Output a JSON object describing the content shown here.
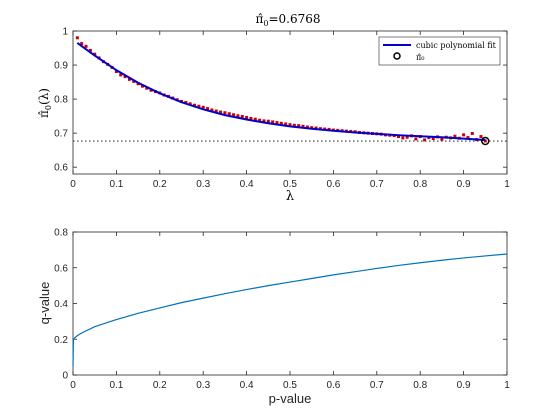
{
  "chart_data": [
    {
      "type": "scatter",
      "title_base": "π̂",
      "title_sub": "0",
      "title_value": "=0.6768",
      "xlabel": "λ",
      "ylabel_base": "π̂",
      "ylabel_sub": "0",
      "ylabel_arg": "(λ)",
      "xlim": [
        0,
        1
      ],
      "ylim": [
        0.58,
        1.0
      ],
      "xticks": [
        "0",
        "0.1",
        "0.2",
        "0.3",
        "0.4",
        "0.5",
        "0.6",
        "0.7",
        "0.8",
        "0.9",
        "1"
      ],
      "yticks": [
        "0.6",
        "0.7",
        "0.8",
        "0.9",
        "1"
      ],
      "grid": false,
      "legend_position": "top-right",
      "pi0_estimate": 0.6768,
      "pi0_lambda": 0.95,
      "colors": {
        "points": "#cc0000",
        "fit": "#0000cc",
        "reference": "#000000",
        "marker": "#000000"
      },
      "series": [
        {
          "type": "scatter",
          "x": [
            0.01,
            0.02,
            0.03,
            0.04,
            0.05,
            0.06,
            0.07,
            0.08,
            0.09,
            0.1,
            0.11,
            0.12,
            0.13,
            0.14,
            0.15,
            0.16,
            0.17,
            0.18,
            0.19,
            0.2,
            0.21,
            0.22,
            0.23,
            0.24,
            0.25,
            0.26,
            0.27,
            0.28,
            0.29,
            0.3,
            0.31,
            0.32,
            0.33,
            0.34,
            0.35,
            0.36,
            0.37,
            0.38,
            0.39,
            0.4,
            0.41,
            0.42,
            0.43,
            0.44,
            0.45,
            0.46,
            0.47,
            0.48,
            0.49,
            0.5,
            0.51,
            0.52,
            0.53,
            0.54,
            0.55,
            0.56,
            0.57,
            0.58,
            0.59,
            0.6,
            0.61,
            0.62,
            0.63,
            0.64,
            0.65,
            0.66,
            0.67,
            0.68,
            0.69,
            0.7,
            0.71,
            0.72,
            0.73,
            0.74,
            0.75,
            0.76,
            0.77,
            0.78,
            0.79,
            0.8,
            0.81,
            0.82,
            0.83,
            0.84,
            0.85,
            0.86,
            0.87,
            0.88,
            0.89,
            0.9,
            0.91,
            0.92,
            0.93,
            0.94,
            0.95
          ],
          "y": [
            0.98,
            0.963,
            0.955,
            0.943,
            0.932,
            0.921,
            0.91,
            0.902,
            0.893,
            0.881,
            0.871,
            0.866,
            0.858,
            0.852,
            0.845,
            0.838,
            0.832,
            0.826,
            0.822,
            0.818,
            0.812,
            0.808,
            0.803,
            0.798,
            0.793,
            0.79,
            0.786,
            0.782,
            0.779,
            0.776,
            0.772,
            0.768,
            0.765,
            0.762,
            0.76,
            0.757,
            0.754,
            0.751,
            0.749,
            0.746,
            0.743,
            0.741,
            0.738,
            0.736,
            0.735,
            0.733,
            0.731,
            0.729,
            0.727,
            0.725,
            0.723,
            0.722,
            0.72,
            0.718,
            0.716,
            0.715,
            0.713,
            0.712,
            0.711,
            0.709,
            0.708,
            0.707,
            0.706,
            0.705,
            0.704,
            0.702,
            0.701,
            0.7,
            0.699,
            0.698,
            0.697,
            0.695,
            0.694,
            0.693,
            0.69,
            0.686,
            0.688,
            0.692,
            0.683,
            0.69,
            0.68,
            0.687,
            0.684,
            0.689,
            0.682,
            0.688,
            0.686,
            0.691,
            0.685,
            0.695,
            0.687,
            0.699,
            0.681,
            0.69,
            0.677
          ]
        },
        {
          "type": "line",
          "name": "cubic polynomial fit",
          "x": [
            0.01,
            0.05,
            0.1,
            0.15,
            0.2,
            0.25,
            0.3,
            0.35,
            0.4,
            0.45,
            0.5,
            0.55,
            0.6,
            0.65,
            0.7,
            0.75,
            0.8,
            0.85,
            0.9,
            0.95
          ],
          "y": [
            0.965,
            0.928,
            0.885,
            0.848,
            0.817,
            0.791,
            0.77,
            0.753,
            0.74,
            0.729,
            0.72,
            0.713,
            0.707,
            0.702,
            0.698,
            0.694,
            0.691,
            0.688,
            0.684,
            0.68
          ]
        },
        {
          "type": "marker",
          "name": "π̂₀",
          "x": [
            0.95
          ],
          "y": [
            0.6768
          ]
        }
      ]
    },
    {
      "type": "line",
      "xlabel": "p-value",
      "ylabel": "q-value",
      "xlim": [
        0,
        1
      ],
      "ylim": [
        0,
        0.8
      ],
      "xticks": [
        "0",
        "0.1",
        "0.2",
        "0.3",
        "0.4",
        "0.5",
        "0.6",
        "0.7",
        "0.8",
        "0.9",
        "1"
      ],
      "yticks": [
        "0",
        "0.2",
        "0.4",
        "0.6",
        "0.8"
      ],
      "grid": false,
      "colors": {
        "line": "#0072bd"
      },
      "series": [
        {
          "x": [
            0,
            0.001,
            0.005,
            0.01,
            0.02,
            0.05,
            0.1,
            0.15,
            0.2,
            0.25,
            0.3,
            0.35,
            0.4,
            0.45,
            0.5,
            0.55,
            0.6,
            0.65,
            0.7,
            0.75,
            0.8,
            0.85,
            0.9,
            0.95,
            1.0
          ],
          "y": [
            0.05,
            0.2,
            0.21,
            0.22,
            0.235,
            0.27,
            0.31,
            0.345,
            0.375,
            0.405,
            0.43,
            0.455,
            0.478,
            0.5,
            0.52,
            0.54,
            0.56,
            0.578,
            0.596,
            0.613,
            0.628,
            0.642,
            0.655,
            0.666,
            0.677
          ]
        }
      ]
    }
  ]
}
